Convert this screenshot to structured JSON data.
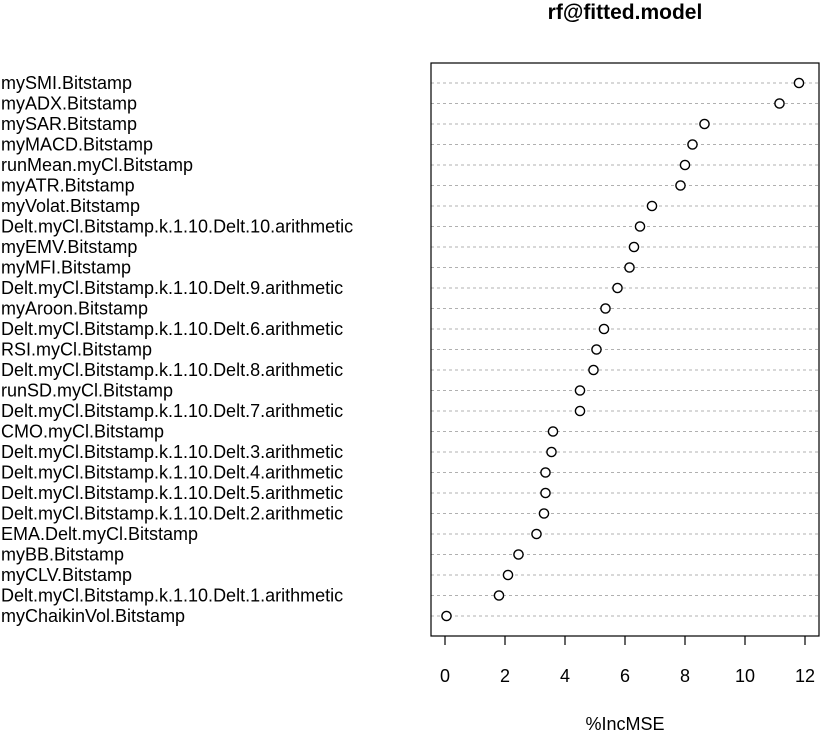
{
  "chart_data": {
    "type": "scatter",
    "title": "rf@fitted.model",
    "xlabel": "%IncMSE",
    "ylabel": "",
    "xlim": [
      0,
      12
    ],
    "xticks": [
      "0",
      "2",
      "4",
      "6",
      "8",
      "10",
      "12"
    ],
    "grid": "horizontal-dashed",
    "legend": "none",
    "variables": [
      {
        "name": "mySMI.Bitstamp",
        "value": 11.8
      },
      {
        "name": "myADX.Bitstamp",
        "value": 11.15
      },
      {
        "name": "mySAR.Bitstamp",
        "value": 8.65
      },
      {
        "name": "myMACD.Bitstamp",
        "value": 8.25
      },
      {
        "name": "runMean.myCl.Bitstamp",
        "value": 8.0
      },
      {
        "name": "myATR.Bitstamp",
        "value": 7.85
      },
      {
        "name": "myVolat.Bitstamp",
        "value": 6.9
      },
      {
        "name": "Delt.myCl.Bitstamp.k.1.10.Delt.10.arithmetic",
        "value": 6.5
      },
      {
        "name": "myEMV.Bitstamp",
        "value": 6.3
      },
      {
        "name": "myMFI.Bitstamp",
        "value": 6.15
      },
      {
        "name": "Delt.myCl.Bitstamp.k.1.10.Delt.9.arithmetic",
        "value": 5.75
      },
      {
        "name": "myAroon.Bitstamp",
        "value": 5.35
      },
      {
        "name": "Delt.myCl.Bitstamp.k.1.10.Delt.6.arithmetic",
        "value": 5.3
      },
      {
        "name": "RSI.myCl.Bitstamp",
        "value": 5.05
      },
      {
        "name": "Delt.myCl.Bitstamp.k.1.10.Delt.8.arithmetic",
        "value": 4.95
      },
      {
        "name": "runSD.myCl.Bitstamp",
        "value": 4.5
      },
      {
        "name": "Delt.myCl.Bitstamp.k.1.10.Delt.7.arithmetic",
        "value": 4.5
      },
      {
        "name": "CMO.myCl.Bitstamp",
        "value": 3.6
      },
      {
        "name": "Delt.myCl.Bitstamp.k.1.10.Delt.3.arithmetic",
        "value": 3.55
      },
      {
        "name": "Delt.myCl.Bitstamp.k.1.10.Delt.4.arithmetic",
        "value": 3.35
      },
      {
        "name": "Delt.myCl.Bitstamp.k.1.10.Delt.5.arithmetic",
        "value": 3.35
      },
      {
        "name": "Delt.myCl.Bitstamp.k.1.10.Delt.2.arithmetic",
        "value": 3.3
      },
      {
        "name": "EMA.Delt.myCl.Bitstamp",
        "value": 3.05
      },
      {
        "name": "myBB.Bitstamp",
        "value": 2.45
      },
      {
        "name": "myCLV.Bitstamp",
        "value": 2.1
      },
      {
        "name": "Delt.myCl.Bitstamp.k.1.10.Delt.1.arithmetic",
        "value": 1.8
      },
      {
        "name": "myChaikinVol.Bitstamp",
        "value": 0.05
      }
    ]
  }
}
